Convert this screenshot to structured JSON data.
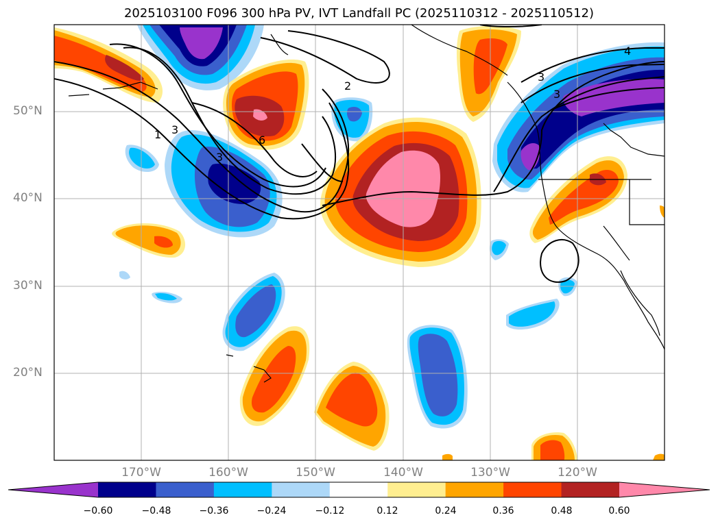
{
  "title": "2025103100 F096 300 hPa PV, IVT Landfall PC (2025110312 - 2025110512)",
  "map": {
    "lon_range": [
      -180,
      -110
    ],
    "lat_range": [
      10,
      60
    ],
    "lat_ticks": [
      {
        "lat": 50,
        "label": "50°N"
      },
      {
        "lat": 40,
        "label": "40°N"
      },
      {
        "lat": 30,
        "label": "30°N"
      },
      {
        "lat": 20,
        "label": "20°N"
      }
    ],
    "lon_ticks": [
      {
        "lon": -170,
        "label": "170°W"
      },
      {
        "lon": -160,
        "label": "160°W"
      },
      {
        "lon": -150,
        "label": "150°W"
      },
      {
        "lon": -140,
        "label": "140°W"
      },
      {
        "lon": -130,
        "label": "130°W"
      },
      {
        "lon": -120,
        "label": "120°W"
      }
    ],
    "gridlines": true,
    "pv_contour_labels": [
      "2",
      "4",
      "3",
      "1",
      "3",
      "3",
      "6",
      "3"
    ]
  },
  "colorbar": {
    "colors": [
      "#9933cc",
      "#00008b",
      "#3a5fcd",
      "#00bfff",
      "#add8f8",
      "#ffffff",
      "#ffee90",
      "#ffa500",
      "#ff4500",
      "#b22222",
      "#ff88aa"
    ],
    "ticks": [
      "−0.60",
      "−0.48",
      "−0.36",
      "−0.24",
      "−0.12",
      "0.12",
      "0.24",
      "0.36",
      "0.48",
      "0.60"
    ],
    "extend": "both"
  }
}
